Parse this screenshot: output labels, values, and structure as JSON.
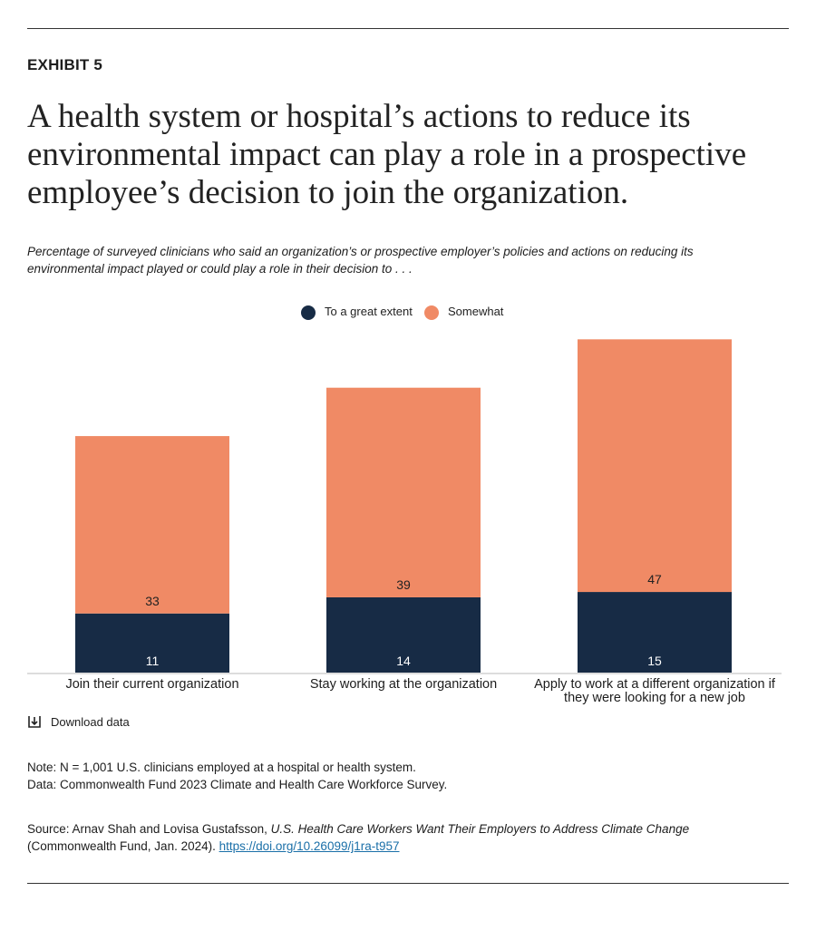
{
  "header": {
    "exhibit": "EXHIBIT 5",
    "title": "A health system or hospital’s actions to reduce its environmental impact can play a role in a prospective employee’s decision to join the organization.",
    "subtitle": "Percentage of surveyed clinicians who said an organization’s or prospective employer’s policies and actions on reducing its environmental impact played or could play a role in their decision to . . ."
  },
  "chart_data": {
    "type": "stacked_bar",
    "categories": [
      "Join their current organization",
      "Stay working at the organization",
      "Apply to work at a different organization if they were looking for a new job"
    ],
    "series": [
      {
        "name": "To a great extent",
        "color": "#172b45",
        "values": [
          11,
          14,
          15
        ]
      },
      {
        "name": "Somewhat",
        "color": "#f08a65",
        "values": [
          33,
          39,
          47
        ]
      }
    ]
  },
  "download": "Download data",
  "notes": [
    "Note: N = 1,001 U.S. clinicians employed at a hospital or health system.",
    "Data: Commonwealth Fund 2023 Climate and Health Care Workforce Survey."
  ],
  "source": {
    "prefix": "Source: Arnav Shah and Lovisa Gustafsson, ",
    "title": "U.S. Health Care Workers Want Their Employers to Address Climate Change",
    "suffix": " (Commonwealth Fund, Jan. 2024). ",
    "link": "https://doi.org/10.26099/j1ra-t957"
  }
}
